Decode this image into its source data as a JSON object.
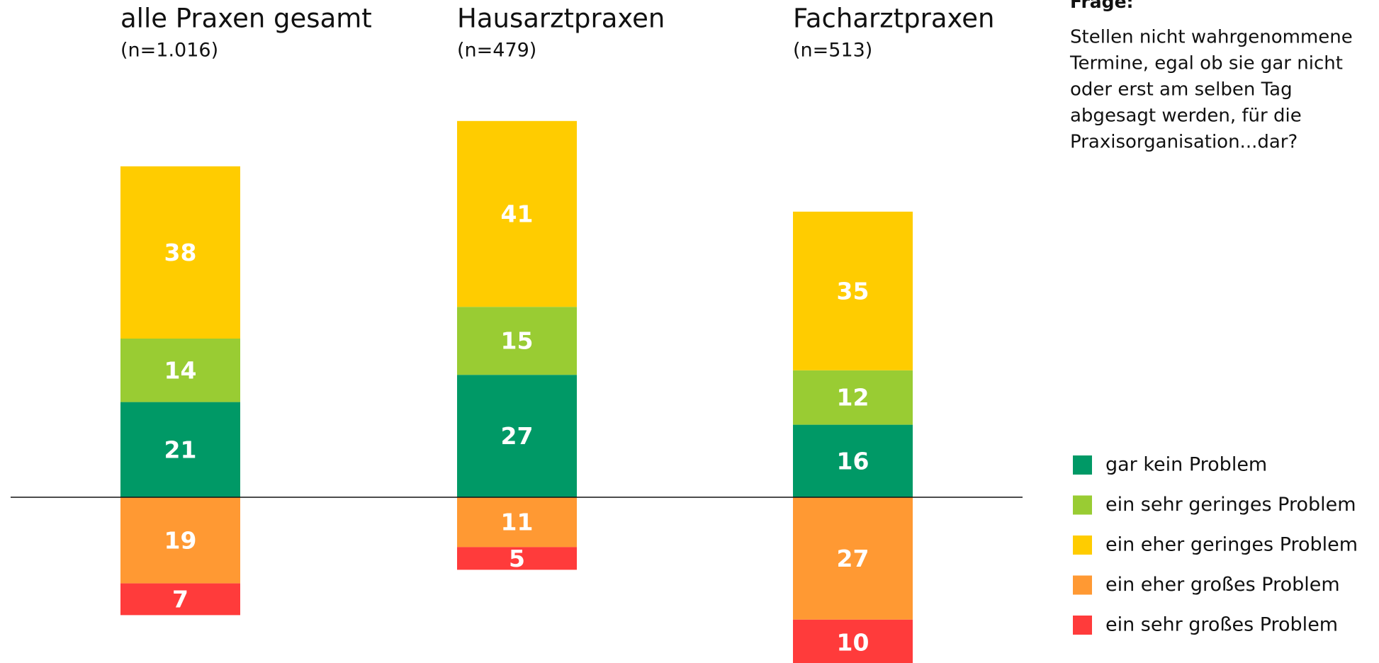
{
  "chart_data": {
    "type": "diverging_stacked_bar",
    "categories": [
      "alle Praxen gesamt",
      "Hausarztpraxen",
      "Facharztpraxen"
    ],
    "subtitles": [
      "(n=1.016)",
      "(n=479)",
      "(n=513)"
    ],
    "series": [
      {
        "name": "gar kein Problem",
        "color": "#009966",
        "values": [
          21,
          27,
          16
        ]
      },
      {
        "name": "ein sehr geringes Problem",
        "color": "#99cc33",
        "values": [
          14,
          15,
          12
        ]
      },
      {
        "name": "ein eher geringes Problem",
        "color": "#ffcc00",
        "values": [
          38,
          41,
          35
        ]
      },
      {
        "name": "ein eher großes Problem",
        "color": "#ff9933",
        "values": [
          19,
          11,
          27
        ]
      },
      {
        "name": "ein sehr großes Problem",
        "color": "#ff3b3b",
        "values": [
          7,
          5,
          10
        ]
      }
    ],
    "question_label": "Frage:",
    "question_lines": [
      "Stellen nicht wahrgenommene",
      "Termine, egal ob sie gar nicht",
      "oder erst am selben Tag",
      "abgesagt werden, für die",
      "Praxisorganisation...dar?"
    ]
  }
}
